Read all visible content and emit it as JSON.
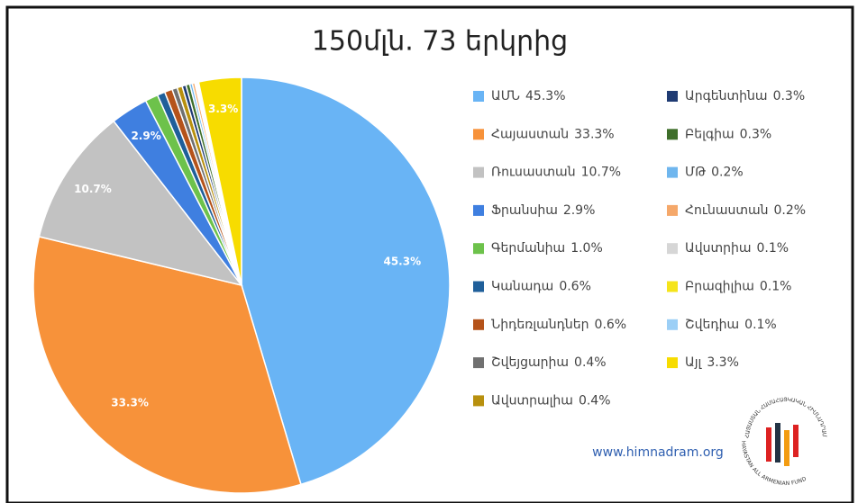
{
  "chart_data": {
    "type": "pie",
    "title": "150մլն. 73 երկրից",
    "categories": [
      "ԱՄՆ",
      "Հայաստան",
      "Ռուսաստան",
      "Ֆրանսիա",
      "Գերմանիա",
      "Կանադա",
      "Նիդեռլանդներ",
      "Շվեյցարիա",
      "Ավստրալիա",
      "Արգենտինա",
      "Բելգիա",
      "ՄԹ",
      "Հունաստան",
      "Ավստրիա",
      "Բրազիլիա",
      "Շվեդիա",
      "Այլ"
    ],
    "values": [
      45.3,
      33.3,
      10.7,
      2.9,
      1.0,
      0.6,
      0.6,
      0.4,
      0.4,
      0.3,
      0.3,
      0.2,
      0.2,
      0.1,
      0.1,
      0.1,
      3.3
    ],
    "value_labels": [
      "45.3%",
      "33.3%",
      "10.7%",
      "2.9%",
      "1.0%",
      "0.6%",
      "0.6%",
      "0.4%",
      "0.4%",
      "0.3%",
      "0.3%",
      "0.2%",
      "0.2%",
      "0.1%",
      "0.1%",
      "0.1%",
      "3.3%"
    ],
    "colors": [
      "#69b4f5",
      "#f7923a",
      "#c2c2c2",
      "#3f7fe0",
      "#6dc24b",
      "#1f5f9a",
      "#b5531a",
      "#707070",
      "#b8900e",
      "#1f3b73",
      "#3e6e2a",
      "#6fb6ee",
      "#f5a86a",
      "#d6d6d6",
      "#f5e41a",
      "#9ccff6",
      "#f7dc00"
    ],
    "legend": "right",
    "website": "www.himnadram.org",
    "logo_text": [
      "ՀԱՅԱՍՏԱՆ ՀԱՄԱՀԱՅԿԱԿԱՆ ՀԻՄՆԱԴՐԱՄ",
      "HAYASTAN ALL ARMENIAN FUND"
    ]
  }
}
